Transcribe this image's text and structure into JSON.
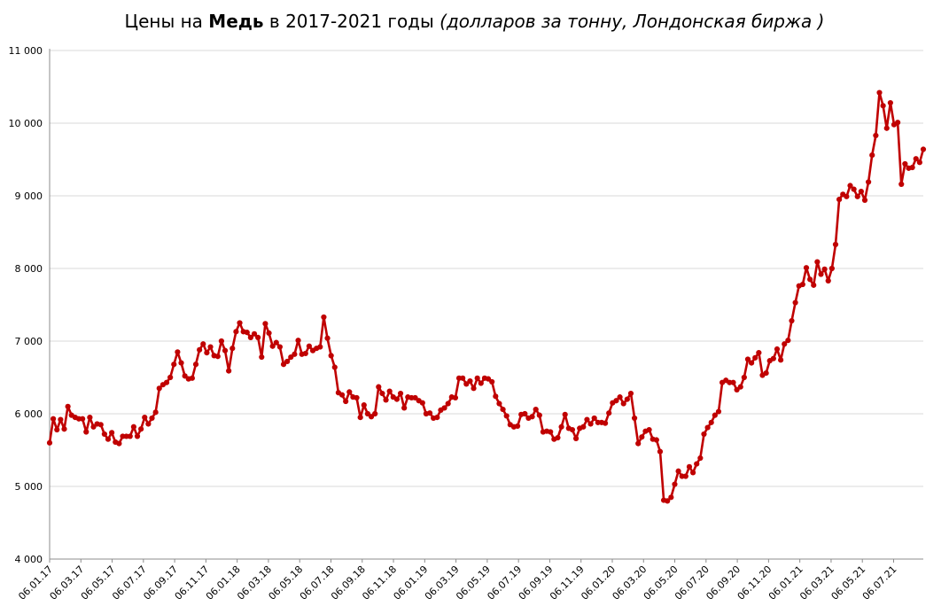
{
  "title": {
    "prefix": "Цены на ",
    "bold": "Медь",
    "middle": " в 2017-2021 годы ",
    "italic": "(долларов за тонну, Лондонская биржа )"
  },
  "colors": {
    "series": "#c00000",
    "grid": "#d9d9d9",
    "axis": "#8c8c8c"
  },
  "chart_data": {
    "type": "line",
    "ylim": [
      4000,
      11000
    ],
    "yticks": [
      4000,
      5000,
      6000,
      7000,
      8000,
      9000,
      10000,
      11000
    ],
    "ytick_labels": [
      "4 000",
      "5 000",
      "6 000",
      "7 000",
      "8 000",
      "9 000",
      "10 000",
      "11 000"
    ],
    "xtick_labels": [
      "06.01.17",
      "06.03.17",
      "06.05.17",
      "06.07.17",
      "06.09.17",
      "06.11.17",
      "06.01.18",
      "06.03.18",
      "06.05.18",
      "06.07.18",
      "06.09.18",
      "06.11.18",
      "06.01.19",
      "06.03.19",
      "06.05.19",
      "06.07.19",
      "06.09.19",
      "06.11.19",
      "06.01.20",
      "06.03.20",
      "06.05.20",
      "06.07.20",
      "06.09.20",
      "06.11.20",
      "06.01.21",
      "06.03.21",
      "06.05.21",
      "06.07.21"
    ],
    "grid": true,
    "legend": "none",
    "series": [
      {
        "values": [
          5600,
          5930,
          5780,
          5920,
          5790,
          6100,
          5980,
          5950,
          5930,
          5930,
          5750,
          5950,
          5820,
          5860,
          5850,
          5720,
          5650,
          5740,
          5610,
          5590,
          5690,
          5690,
          5690,
          5820,
          5690,
          5790,
          5950,
          5860,
          5940,
          6020,
          6350,
          6400,
          6430,
          6500,
          6680,
          6850,
          6700,
          6520,
          6480,
          6490,
          6680,
          6880,
          6960,
          6840,
          6920,
          6800,
          6790,
          7000,
          6870,
          6590,
          6900,
          7130,
          7250,
          7130,
          7120,
          7050,
          7100,
          7050,
          6780,
          7240,
          7110,
          6930,
          6980,
          6920,
          6680,
          6720,
          6780,
          6820,
          7010,
          6820,
          6830,
          6930,
          6870,
          6900,
          6920,
          7330,
          7040,
          6800,
          6640,
          6290,
          6260,
          6170,
          6300,
          6230,
          6220,
          5950,
          6120,
          6000,
          5960,
          6000,
          6370,
          6280,
          6190,
          6310,
          6230,
          6200,
          6280,
          6080,
          6230,
          6220,
          6220,
          6180,
          6150,
          6000,
          6010,
          5940,
          5950,
          6050,
          6080,
          6140,
          6230,
          6220,
          6490,
          6490,
          6410,
          6450,
          6350,
          6490,
          6420,
          6490,
          6480,
          6440,
          6240,
          6140,
          6060,
          5970,
          5850,
          5820,
          5830,
          5990,
          6000,
          5940,
          5960,
          6060,
          5980,
          5750,
          5760,
          5750,
          5650,
          5670,
          5820,
          5990,
          5800,
          5780,
          5660,
          5800,
          5820,
          5920,
          5860,
          5940,
          5880,
          5880,
          5870,
          6010,
          6150,
          6180,
          6230,
          6140,
          6200,
          6280,
          5940,
          5590,
          5680,
          5760,
          5780,
          5650,
          5640,
          5480,
          4810,
          4800,
          4850,
          5030,
          5210,
          5140,
          5140,
          5270,
          5190,
          5310,
          5390,
          5720,
          5810,
          5880,
          5980,
          6030,
          6430,
          6460,
          6430,
          6430,
          6330,
          6370,
          6500,
          6750,
          6700,
          6770,
          6840,
          6530,
          6560,
          6730,
          6760,
          6890,
          6740,
          6960,
          7010,
          7280,
          7530,
          7760,
          7780,
          8010,
          7850,
          7770,
          8090,
          7920,
          7990,
          7830,
          8000,
          8330,
          8950,
          9020,
          8990,
          9140,
          9090,
          8990,
          9060,
          8940,
          9190,
          9560,
          9830,
          10420,
          10240,
          9930,
          10280,
          9980,
          10010,
          9160,
          9440,
          9380,
          9390,
          9510,
          9460,
          9640
        ]
      }
    ]
  }
}
